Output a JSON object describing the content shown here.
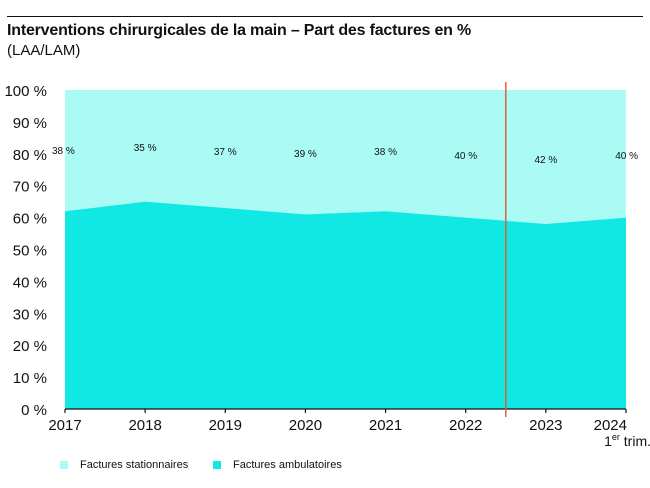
{
  "title": "Interventions chirurgicales de la main – Part des factures en %",
  "subtitle": "(LAA/LAM)",
  "chart_data": {
    "type": "area",
    "title": "Interventions chirurgicales de la main – Part des factures en %",
    "subtitle": "(LAA/LAM)",
    "categories": [
      "2017",
      "2018",
      "2019",
      "2020",
      "2021",
      "2022",
      "2023",
      "2024"
    ],
    "category_sublabels": [
      "",
      "",
      "",
      "",
      "",
      "",
      "",
      "1er trim."
    ],
    "ylim": [
      0,
      100
    ],
    "yticks": [
      0,
      10,
      20,
      30,
      40,
      50,
      60,
      70,
      80,
      90,
      100
    ],
    "ytick_labels": [
      "0 %",
      "10 %",
      "20 %",
      "30 %",
      "40 %",
      "50 %",
      "60 %",
      "70 %",
      "80 %",
      "90 %",
      "100 %"
    ],
    "stacked": true,
    "series": [
      {
        "name": "Factures ambulatoires",
        "values": [
          62,
          65,
          63,
          61,
          62,
          60,
          58,
          60
        ],
        "color": "#12e8e3"
      },
      {
        "name": "Factures stationnaires",
        "values": [
          38,
          35,
          37,
          39,
          38,
          40,
          42,
          40
        ],
        "color": "#aafaf6"
      }
    ],
    "data_labels": [
      "38 %",
      "35 %",
      "37 %",
      "39 %",
      "38 %",
      "40 %",
      "42 %",
      "40 %"
    ],
    "marker_line": {
      "between": [
        "2022",
        "2023"
      ],
      "color": "#e0572e"
    },
    "grid": false,
    "legend_position": "bottom-left"
  }
}
